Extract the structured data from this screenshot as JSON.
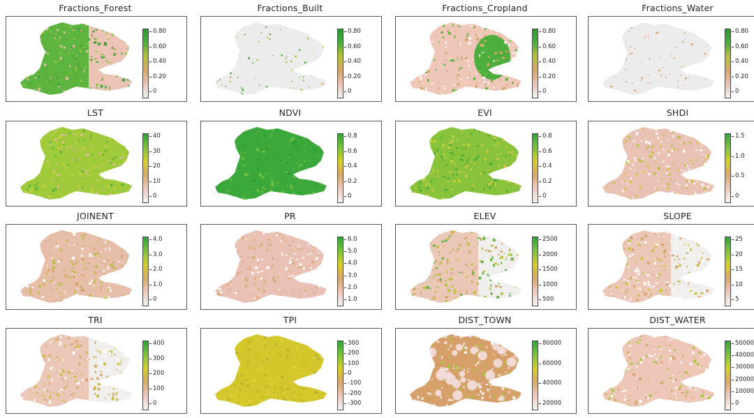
{
  "colors": {
    "low": "#f2f2f2",
    "low_pink": "#eec9bd",
    "mid_tan": "#d9a86a",
    "mid_yellow": "#d6cf2a",
    "high_green": "#2ea63a"
  },
  "panels": [
    {
      "title": "Fractions_Forest",
      "ticks": [
        "0.80",
        "0.60",
        "0.40",
        "0.20",
        "0"
      ],
      "pattern": "forest"
    },
    {
      "title": "Fractions_Built",
      "ticks": [
        "0.80",
        "0.60",
        "0.40",
        "0.20",
        "0"
      ],
      "pattern": "built"
    },
    {
      "title": "Fractions_Cropland",
      "ticks": [
        "0.80",
        "0.60",
        "0.40",
        "0.20",
        "0"
      ],
      "pattern": "cropland"
    },
    {
      "title": "Fractions_Water",
      "ticks": [
        "0.80",
        "0.60",
        "0.40",
        "0.20",
        "0"
      ],
      "pattern": "water"
    },
    {
      "title": "LST",
      "ticks": [
        "40",
        "30",
        "20",
        "10",
        "0"
      ],
      "pattern": "lst"
    },
    {
      "title": "NDVI",
      "ticks": [
        "0.8",
        "0.6",
        "0.4",
        "0.2",
        "0"
      ],
      "pattern": "ndvi"
    },
    {
      "title": "EVI",
      "ticks": [
        "0.8",
        "0.6",
        "0.4",
        "0.2",
        "0"
      ],
      "pattern": "evi"
    },
    {
      "title": "SHDI",
      "ticks": [
        "1.5",
        "1.0",
        "0.5",
        "0"
      ],
      "pattern": "shdi"
    },
    {
      "title": "JOINENT",
      "ticks": [
        "4.0",
        "3.0",
        "2.0",
        "1.0",
        "0"
      ],
      "pattern": "joinent"
    },
    {
      "title": "PR",
      "ticks": [
        "6.0",
        "5.0",
        "4.0",
        "3.0",
        "2.0",
        "1.0"
      ],
      "pattern": "pr"
    },
    {
      "title": "ELEV",
      "ticks": [
        "2500",
        "2000",
        "1500",
        "1000",
        "500"
      ],
      "pattern": "elev"
    },
    {
      "title": "SLOPE",
      "ticks": [
        "25",
        "20",
        "15",
        "10",
        "5"
      ],
      "pattern": "slope"
    },
    {
      "title": "TRI",
      "ticks": [
        "400",
        "300",
        "200",
        "100",
        "0"
      ],
      "pattern": "tri"
    },
    {
      "title": "TPI",
      "ticks": [
        "300",
        "200",
        "100",
        "0",
        "-100",
        "-200",
        "-300"
      ],
      "pattern": "tpi"
    },
    {
      "title": "DIST_TOWN",
      "ticks": [
        "80000",
        "60000",
        "40000",
        "20000"
      ],
      "pattern": "town"
    },
    {
      "title": "DIST_WATER",
      "ticks": [
        "50000",
        "40000",
        "30000",
        "20000",
        "10000",
        "0"
      ],
      "pattern": "water_dist"
    }
  ]
}
